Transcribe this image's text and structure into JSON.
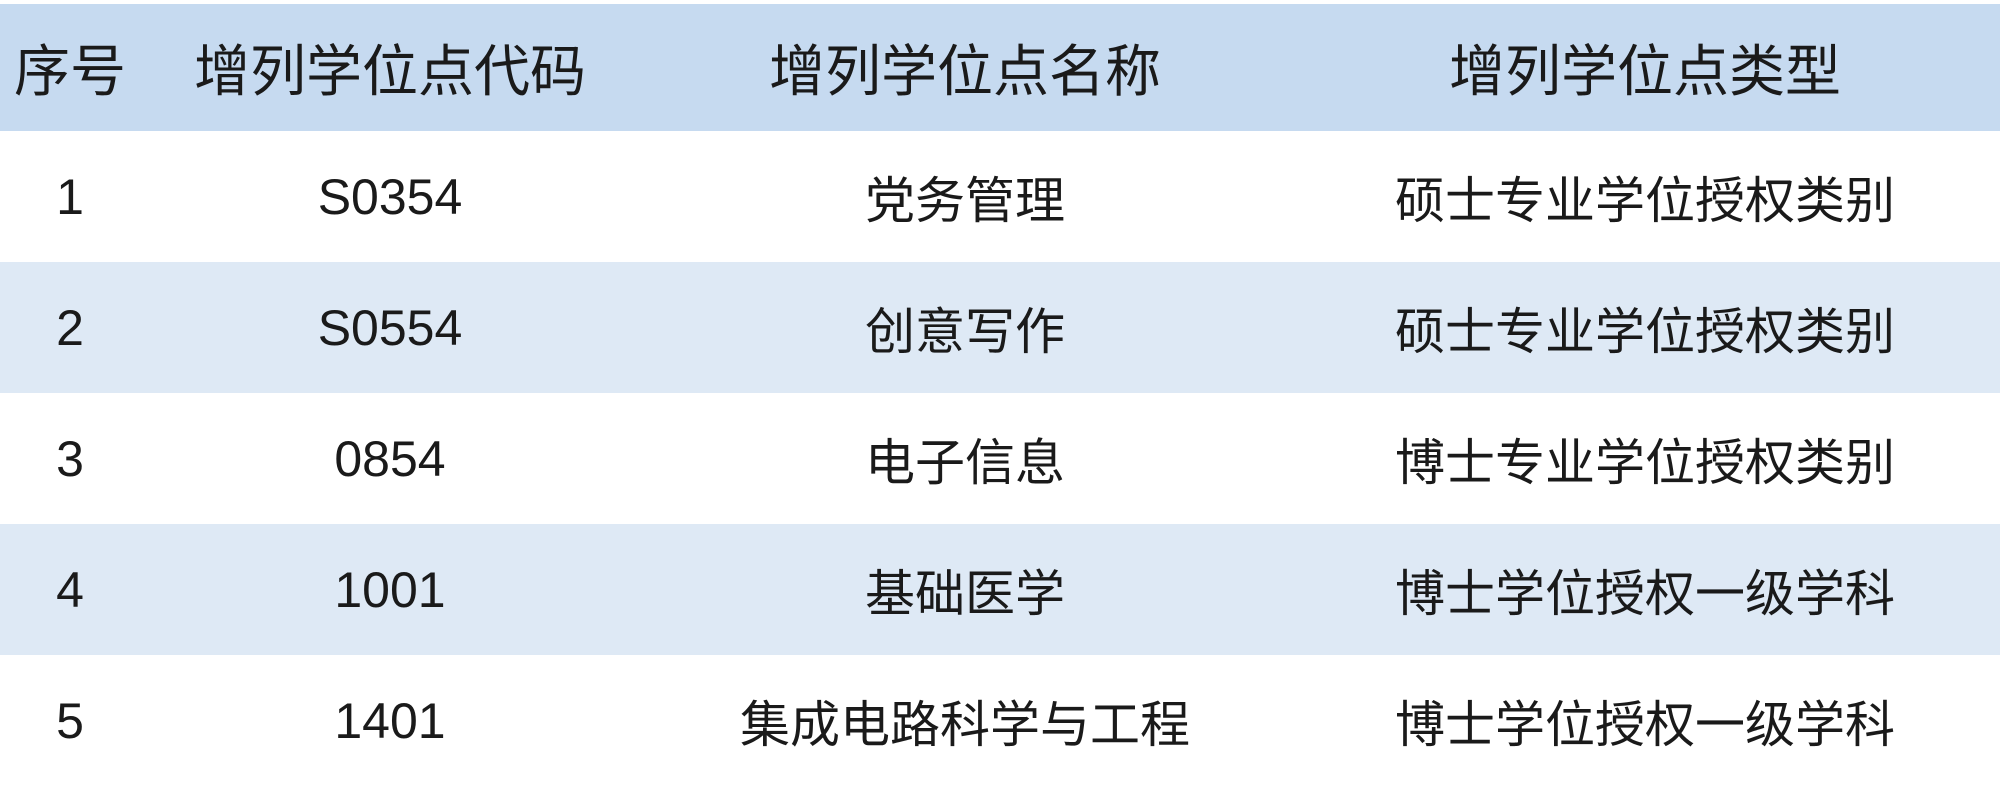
{
  "table": {
    "headers": [
      "序号",
      "增列学位点代码",
      "增列学位点名称",
      "增列学位点类型"
    ],
    "rows": [
      [
        "1",
        "S0354",
        "党务管理",
        "硕士专业学位授权类别"
      ],
      [
        "2",
        "S0554",
        "创意写作",
        "硕士专业学位授权类别"
      ],
      [
        "3",
        "0854",
        "电子信息",
        "博士专业学位授权类别"
      ],
      [
        "4",
        "1001",
        "基础医学",
        "博士学位授权一级学科"
      ],
      [
        "5",
        "1401",
        "集成电路科学与工程",
        "博士学位授权一级学科"
      ]
    ]
  },
  "colors": {
    "header_bg": "#c6daf0",
    "stripe_bg": "#dee9f5",
    "row_bg": "#ffffff"
  }
}
